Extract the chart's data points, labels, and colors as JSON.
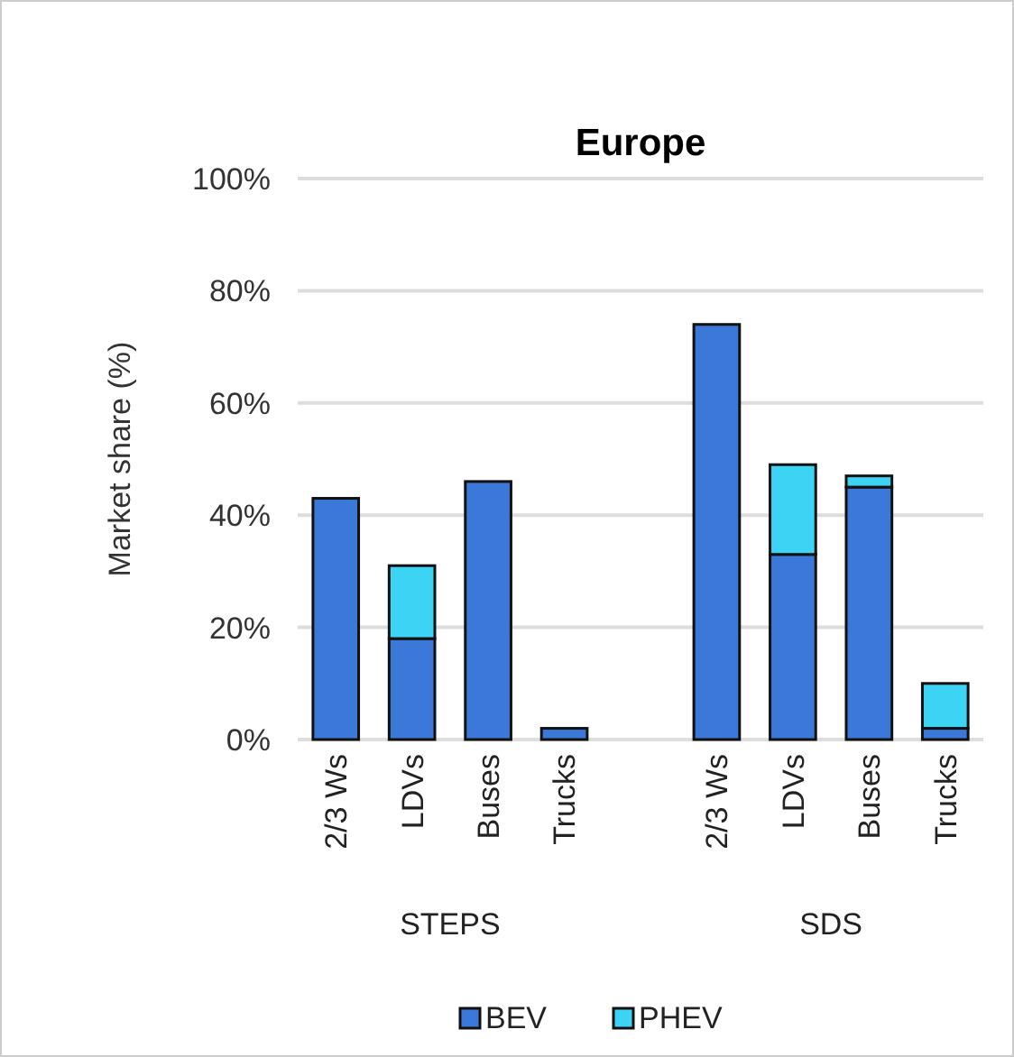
{
  "chart_data": {
    "type": "bar",
    "title": "Europe",
    "ylabel": "Market share (%)",
    "stacked": true,
    "categories": [
      "2/3 Ws",
      "LDVs",
      "Buses",
      "Trucks",
      null,
      "2/3 Ws",
      "LDVs",
      "Buses",
      "Trucks"
    ],
    "series": [
      {
        "name": "BEV",
        "color": "#3b78d8",
        "values": [
          43,
          18,
          46,
          2,
          null,
          74,
          33,
          45,
          2
        ]
      },
      {
        "name": "PHEV",
        "color": "#3dd3f5",
        "values": [
          null,
          13,
          null,
          null,
          null,
          null,
          16,
          2,
          8
        ]
      }
    ],
    "ylim": [
      0,
      100
    ],
    "yticks": [
      {
        "value": 0,
        "label": "0%"
      },
      {
        "value": 20,
        "label": "20%"
      },
      {
        "value": 40,
        "label": "40%"
      },
      {
        "value": 60,
        "label": "60%"
      },
      {
        "value": 80,
        "label": "80%"
      },
      {
        "value": 100,
        "label": "100%"
      }
    ],
    "grid": "y",
    "legend": "bottom",
    "annotations": [
      "STEPS",
      "SDS"
    ]
  }
}
